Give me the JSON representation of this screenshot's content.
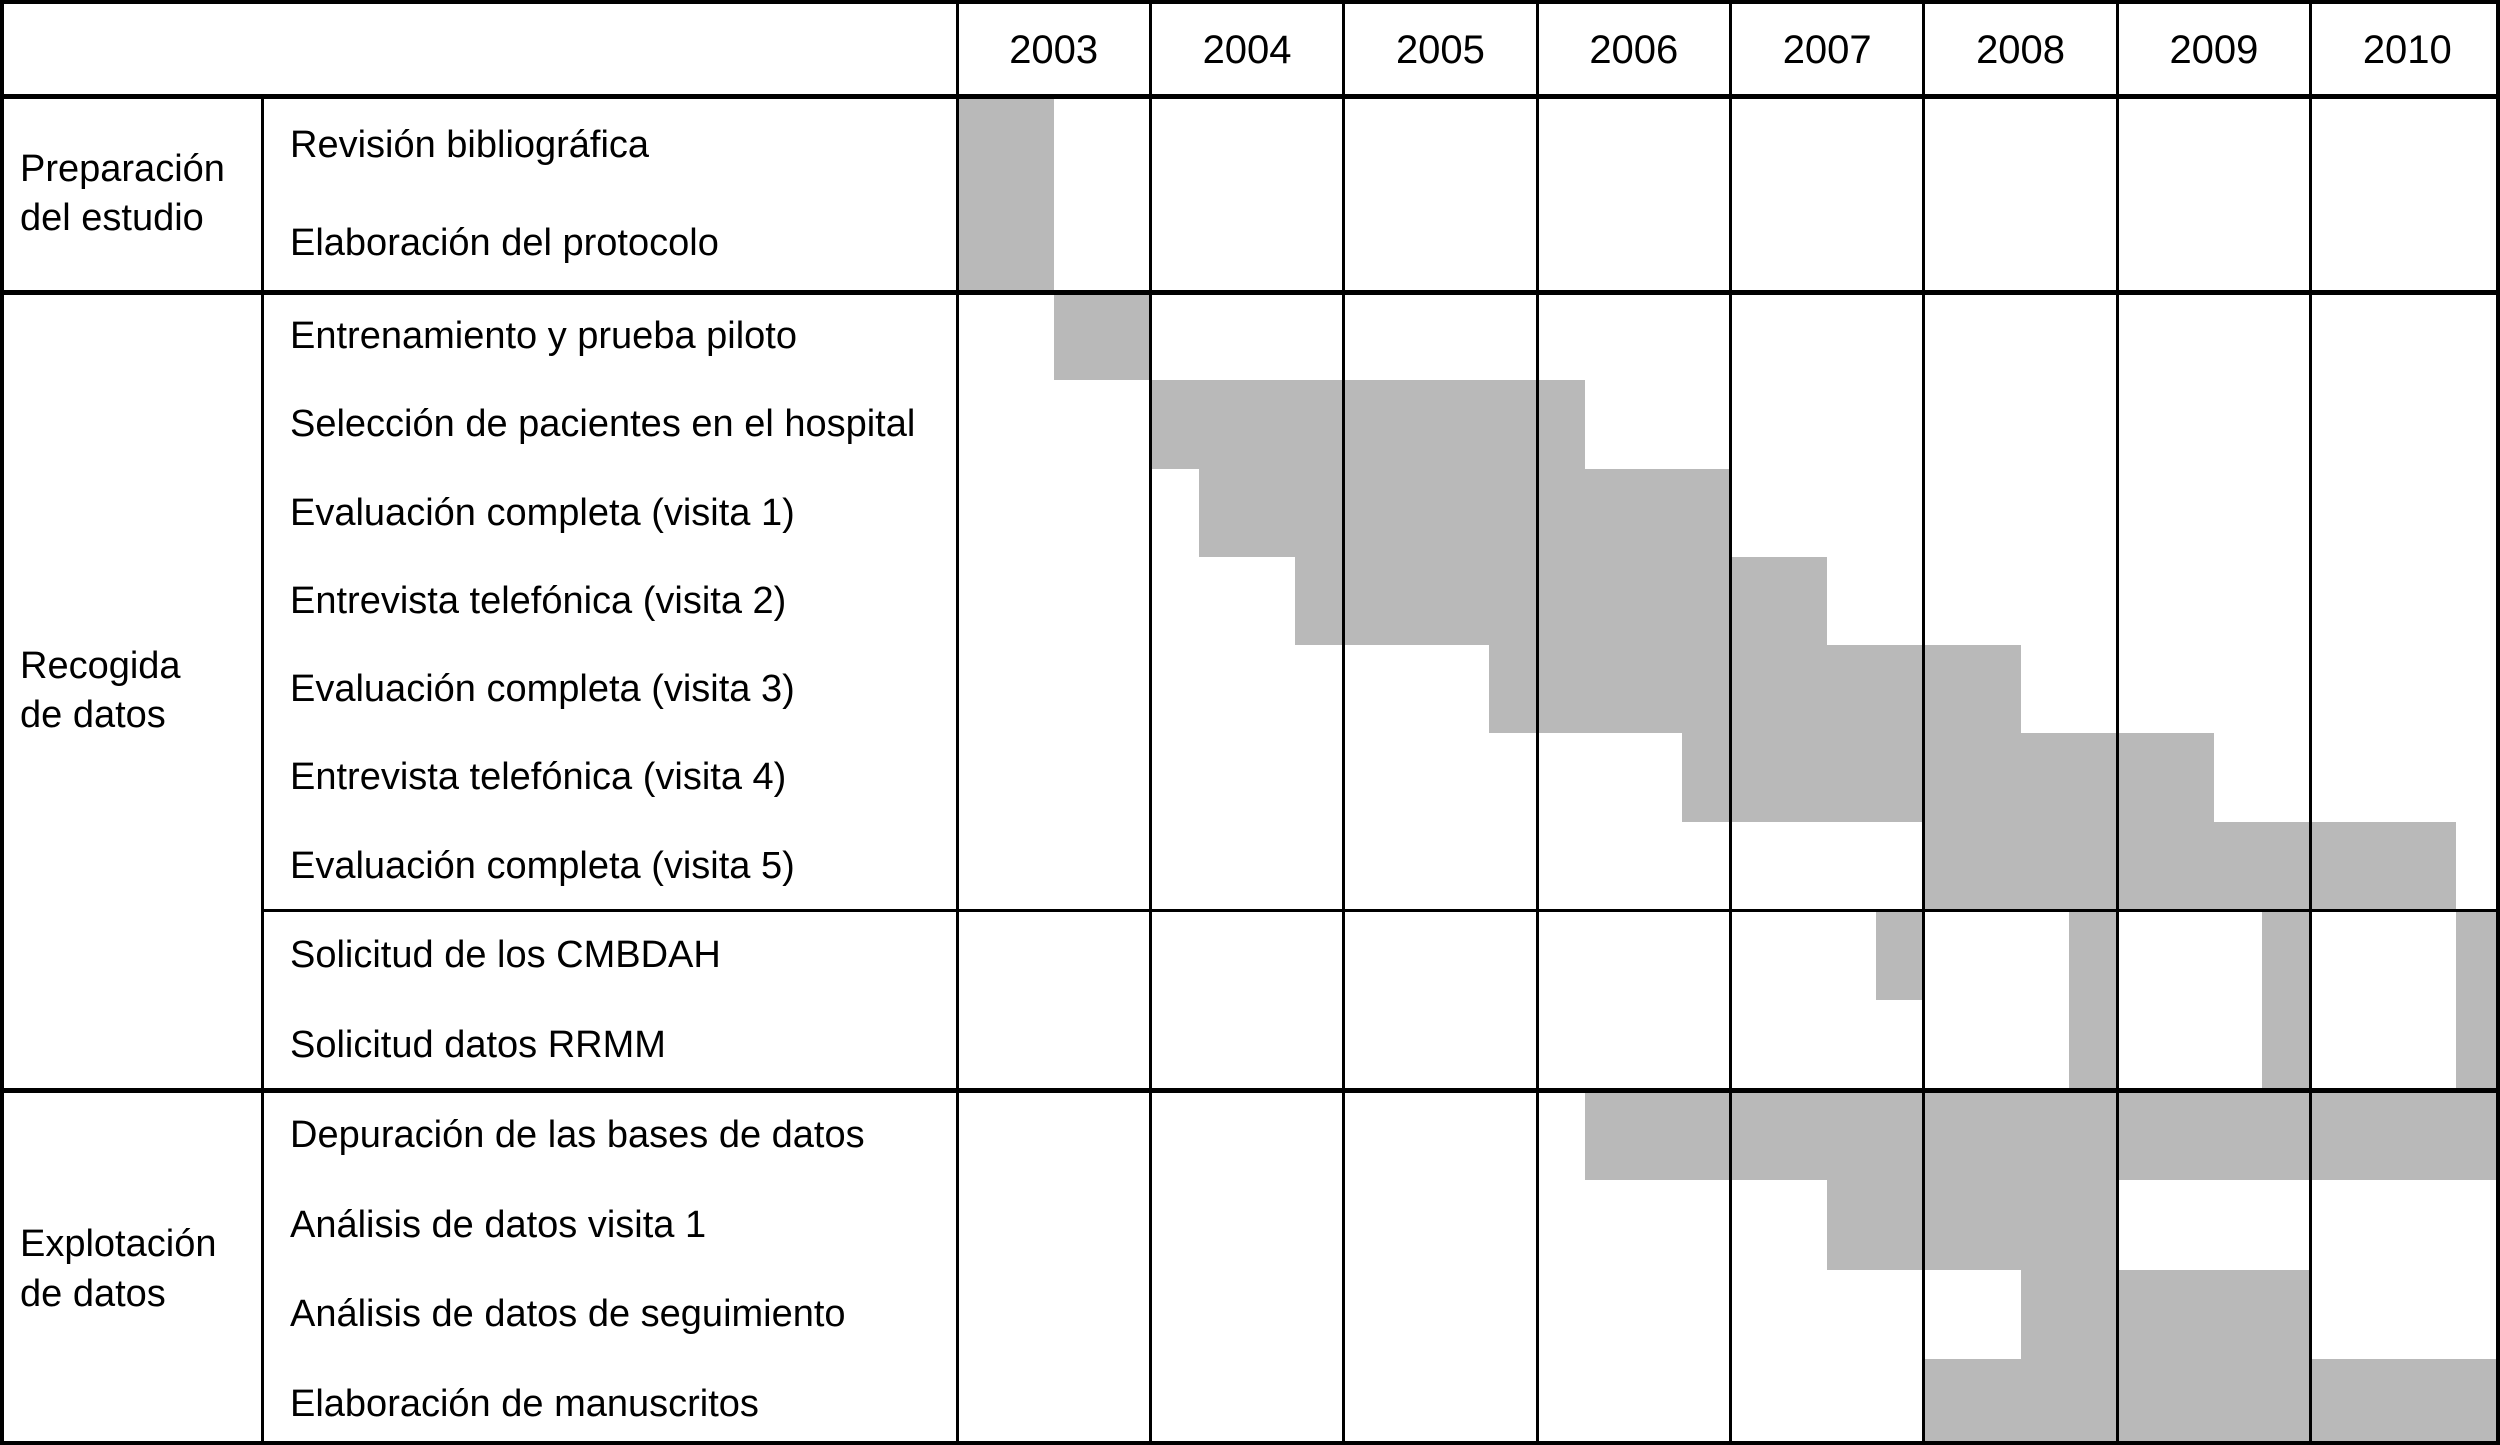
{
  "chart_data": {
    "type": "gantt",
    "title": "",
    "time_axis": {
      "unit": "quarter",
      "start_year": 2003,
      "quarters_per_year": 4,
      "years": [
        "2003",
        "2004",
        "2005",
        "2006",
        "2007",
        "2008",
        "2009",
        "2010"
      ]
    },
    "legend": "none",
    "grid": true,
    "colors": {
      "bar": "#b9b9b9",
      "grid": "#000000",
      "background": "#ffffff",
      "text": "#000000"
    },
    "groups": [
      {
        "label": "Preparación\ndel estudio",
        "tasks": [
          {
            "label": "Revisión bibliográfica",
            "bars": [
              {
                "start": "2003Q1",
                "end": "2003Q2"
              }
            ]
          },
          {
            "label": "Elaboración del protocolo",
            "bars": [
              {
                "start": "2003Q1",
                "end": "2003Q2"
              }
            ]
          }
        ]
      },
      {
        "label": "Recogida\nde datos",
        "tasks": [
          {
            "label": "Entrenamiento y prueba piloto",
            "bars": [
              {
                "start": "2003Q3",
                "end": "2003Q4"
              }
            ]
          },
          {
            "label": "Selección de pacientes en el hospital",
            "bars": [
              {
                "start": "2004Q1",
                "end": "2006Q1"
              }
            ]
          },
          {
            "label": "Evaluación completa (visita 1)",
            "bars": [
              {
                "start": "2004Q2",
                "end": "2006Q4"
              }
            ]
          },
          {
            "label": "Entrevista telefónica (visita 2)",
            "bars": [
              {
                "start": "2004Q4",
                "end": "2007Q2"
              }
            ]
          },
          {
            "label": "Evaluación completa (visita 3)",
            "bars": [
              {
                "start": "2005Q4",
                "end": "2008Q2"
              }
            ]
          },
          {
            "label": "Entrevista telefónica (visita 4)",
            "bars": [
              {
                "start": "2006Q4",
                "end": "2009Q2"
              }
            ]
          },
          {
            "label": "Evaluación completa (visita 5)",
            "bars": [
              {
                "start": "2008Q1",
                "end": "2010Q3"
              }
            ]
          },
          {
            "label": "Solicitud de los CMBDAH",
            "divider_above": true,
            "bars": [
              {
                "start": "2007Q4",
                "end": "2007Q4"
              },
              {
                "start": "2008Q4",
                "end": "2008Q4"
              },
              {
                "start": "2009Q4",
                "end": "2009Q4"
              },
              {
                "start": "2010Q4",
                "end": "2010Q4"
              }
            ]
          },
          {
            "label": "Solicitud datos RRMM",
            "bars": [
              {
                "start": "2008Q4",
                "end": "2008Q4"
              },
              {
                "start": "2009Q4",
                "end": "2009Q4"
              },
              {
                "start": "2010Q4",
                "end": "2010Q4"
              }
            ]
          }
        ]
      },
      {
        "label": "Explotación\nde datos",
        "tasks": [
          {
            "label": "Depuración de las bases de datos",
            "bars": [
              {
                "start": "2006Q2",
                "end": "2010Q4"
              }
            ]
          },
          {
            "label": "Análisis de datos visita 1",
            "bars": [
              {
                "start": "2007Q3",
                "end": "2008Q4"
              }
            ]
          },
          {
            "label": "Análisis de datos de seguimiento",
            "bars": [
              {
                "start": "2008Q3",
                "end": "2009Q4"
              }
            ]
          },
          {
            "label": "Elaboración de manuscritos",
            "bars": [
              {
                "start": "2008Q1",
                "end": "2010Q4"
              }
            ]
          }
        ]
      }
    ]
  }
}
